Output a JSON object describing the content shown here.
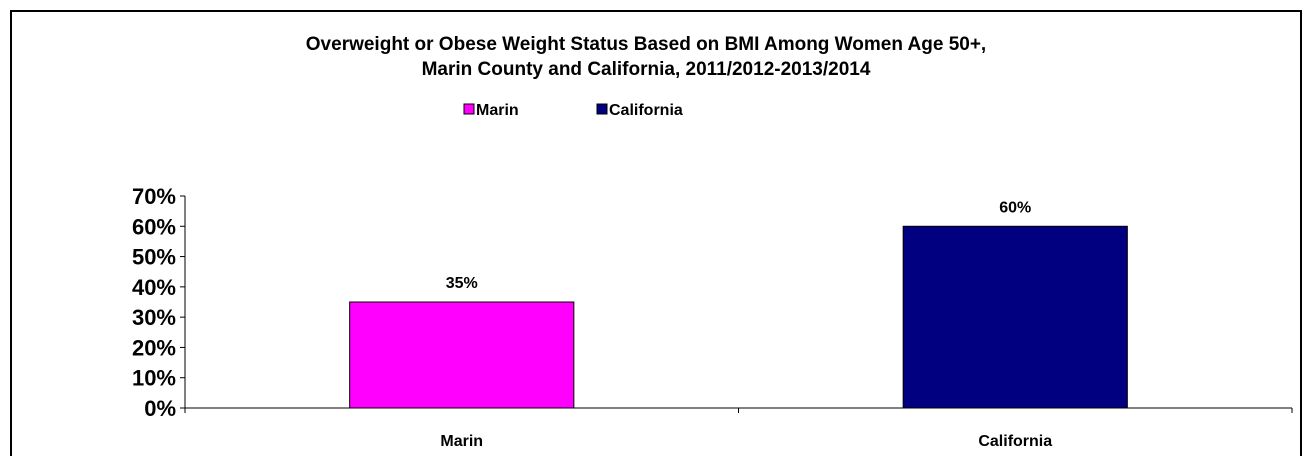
{
  "chart_data": {
    "type": "bar",
    "title": "Overweight or Obese Weight Status Based on BMI Among Women Age 50+,",
    "subtitle": "Marin County and California, 2011/2012-2013/2014",
    "categories": [
      "Marin",
      "California"
    ],
    "series": [
      {
        "name": "Marin",
        "values": [
          35,
          null
        ],
        "color": "#ff00ff"
      },
      {
        "name": "California",
        "values": [
          null,
          60
        ],
        "color": "#000080"
      }
    ],
    "data_labels": [
      "35%",
      "60%"
    ],
    "ylim": [
      0,
      70
    ],
    "yticks": [
      {
        "value": 0,
        "label": "0%"
      },
      {
        "value": 10,
        "label": "10%"
      },
      {
        "value": 20,
        "label": "20%"
      },
      {
        "value": 30,
        "label": "30%"
      },
      {
        "value": 40,
        "label": "40%"
      },
      {
        "value": 50,
        "label": "50%"
      },
      {
        "value": 60,
        "label": "60%"
      },
      {
        "value": 70,
        "label": "70%"
      }
    ],
    "xlabel": "",
    "ylabel": "",
    "grid": false,
    "legend": [
      {
        "label": "Marin",
        "color": "#ff00ff"
      },
      {
        "label": "California",
        "color": "#000080"
      }
    ],
    "legend_position": "top-center"
  }
}
